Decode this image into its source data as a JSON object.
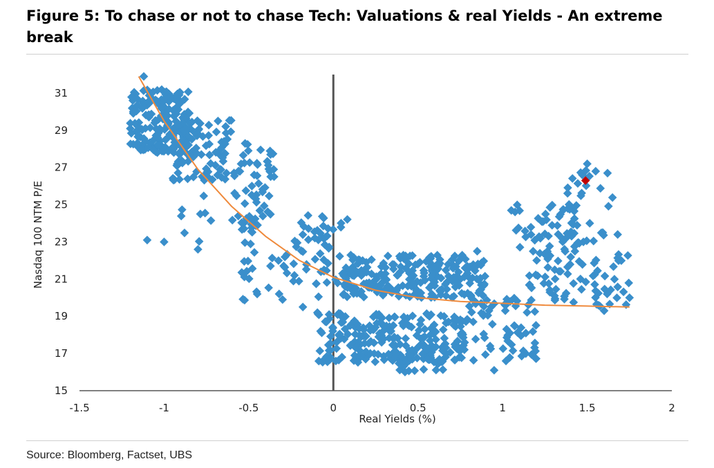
{
  "title": "Figure 5: To chase or not to chase Tech: Valuations & real Yields - An extreme break",
  "source": "Source: Bloomberg, Factset, UBS",
  "colors": {
    "points": "#3a8fcb",
    "fit": "#ef8a3c",
    "latest": "#c00000",
    "zero_line": "#555555"
  },
  "chart_data": {
    "type": "scatter",
    "title": "Figure 5: To chase or not to chase Tech: Valuations & real Yields - An extreme break",
    "xlabel": "Real Yields (%)",
    "ylabel": "Nasdaq 100 NTM P/E",
    "xlim": [
      -1.5,
      2
    ],
    "ylim": [
      15,
      32
    ],
    "xticks": [
      -1.5,
      -1,
      -0.5,
      0,
      0.5,
      1,
      1.5,
      2
    ],
    "xtick_labels": [
      "-1.5",
      "-1",
      "-0.5",
      "0",
      "0.5",
      "1",
      "1.5",
      "2"
    ],
    "yticks": [
      15,
      17,
      19,
      21,
      23,
      25,
      27,
      29,
      31
    ],
    "ytick_labels": [
      "15",
      "17",
      "19",
      "21",
      "23",
      "25",
      "27",
      "29",
      "31"
    ],
    "grid": false,
    "reference_line": {
      "x": 0
    },
    "clusters": [
      {
        "x_range": [
          -1.2,
          -0.85
        ],
        "y_range": [
          27.8,
          31.2
        ],
        "count": 170
      },
      {
        "x_range": [
          -0.95,
          -0.6
        ],
        "y_range": [
          26.3,
          29.6
        ],
        "count": 95
      },
      {
        "x_range": [
          -0.6,
          -0.35
        ],
        "y_range": [
          23.5,
          28.4
        ],
        "count": 55
      },
      {
        "x_range": [
          -0.9,
          -0.4
        ],
        "y_range": [
          22.8,
          25.5
        ],
        "count": 18
      },
      {
        "x_range": [
          -0.55,
          -0.05
        ],
        "y_range": [
          19.8,
          23.2
        ],
        "count": 35
      },
      {
        "x_range": [
          -0.2,
          0.1
        ],
        "y_range": [
          20.5,
          24.5
        ],
        "count": 40
      },
      {
        "x_range": [
          0.05,
          0.9
        ],
        "y_range": [
          20.0,
          22.3
        ],
        "count": 230
      },
      {
        "x_range": [
          -0.1,
          0.8
        ],
        "y_range": [
          16.5,
          19.2
        ],
        "count": 220
      },
      {
        "x_range": [
          0.35,
          0.7
        ],
        "y_range": [
          16.0,
          17.5
        ],
        "count": 45
      },
      {
        "x_range": [
          0.8,
          1.2
        ],
        "y_range": [
          16.5,
          20.0
        ],
        "count": 60
      },
      {
        "x_range": [
          1.05,
          1.45
        ],
        "y_range": [
          22.5,
          25.0
        ],
        "count": 45
      },
      {
        "x_range": [
          1.15,
          1.75
        ],
        "y_range": [
          19.5,
          22.5
        ],
        "count": 75
      },
      {
        "x_range": [
          1.35,
          1.65
        ],
        "y_range": [
          22.8,
          27.0
        ],
        "count": 30
      }
    ],
    "points": [
      [
        -1.12,
        31.9
      ],
      [
        -1.1,
        23.1
      ],
      [
        -1.0,
        23.0
      ],
      [
        -0.8,
        22.6
      ],
      [
        -0.45,
        20.2
      ],
      [
        -0.3,
        19.9
      ],
      [
        -0.18,
        19.5
      ],
      [
        0.95,
        16.1
      ],
      [
        1.02,
        16.6
      ],
      [
        1.5,
        27.2
      ],
      [
        1.55,
        26.8
      ],
      [
        1.62,
        26.7
      ],
      [
        1.68,
        23.4
      ],
      [
        1.6,
        19.3
      ],
      [
        1.75,
        20.0
      ],
      [
        0.85,
        22.5
      ]
    ],
    "latest_point": {
      "x": 1.49,
      "y": 26.3
    },
    "fit_curve": {
      "type": "exponential",
      "x": [
        -1.15,
        -1.0,
        -0.8,
        -0.6,
        -0.4,
        -0.2,
        0.0,
        0.25,
        0.5,
        0.75,
        1.0,
        1.25,
        1.5,
        1.75
      ],
      "y": [
        31.9,
        29.5,
        26.9,
        24.9,
        23.3,
        22.0,
        21.1,
        20.4,
        20.0,
        19.8,
        19.7,
        19.6,
        19.55,
        19.5
      ]
    }
  }
}
